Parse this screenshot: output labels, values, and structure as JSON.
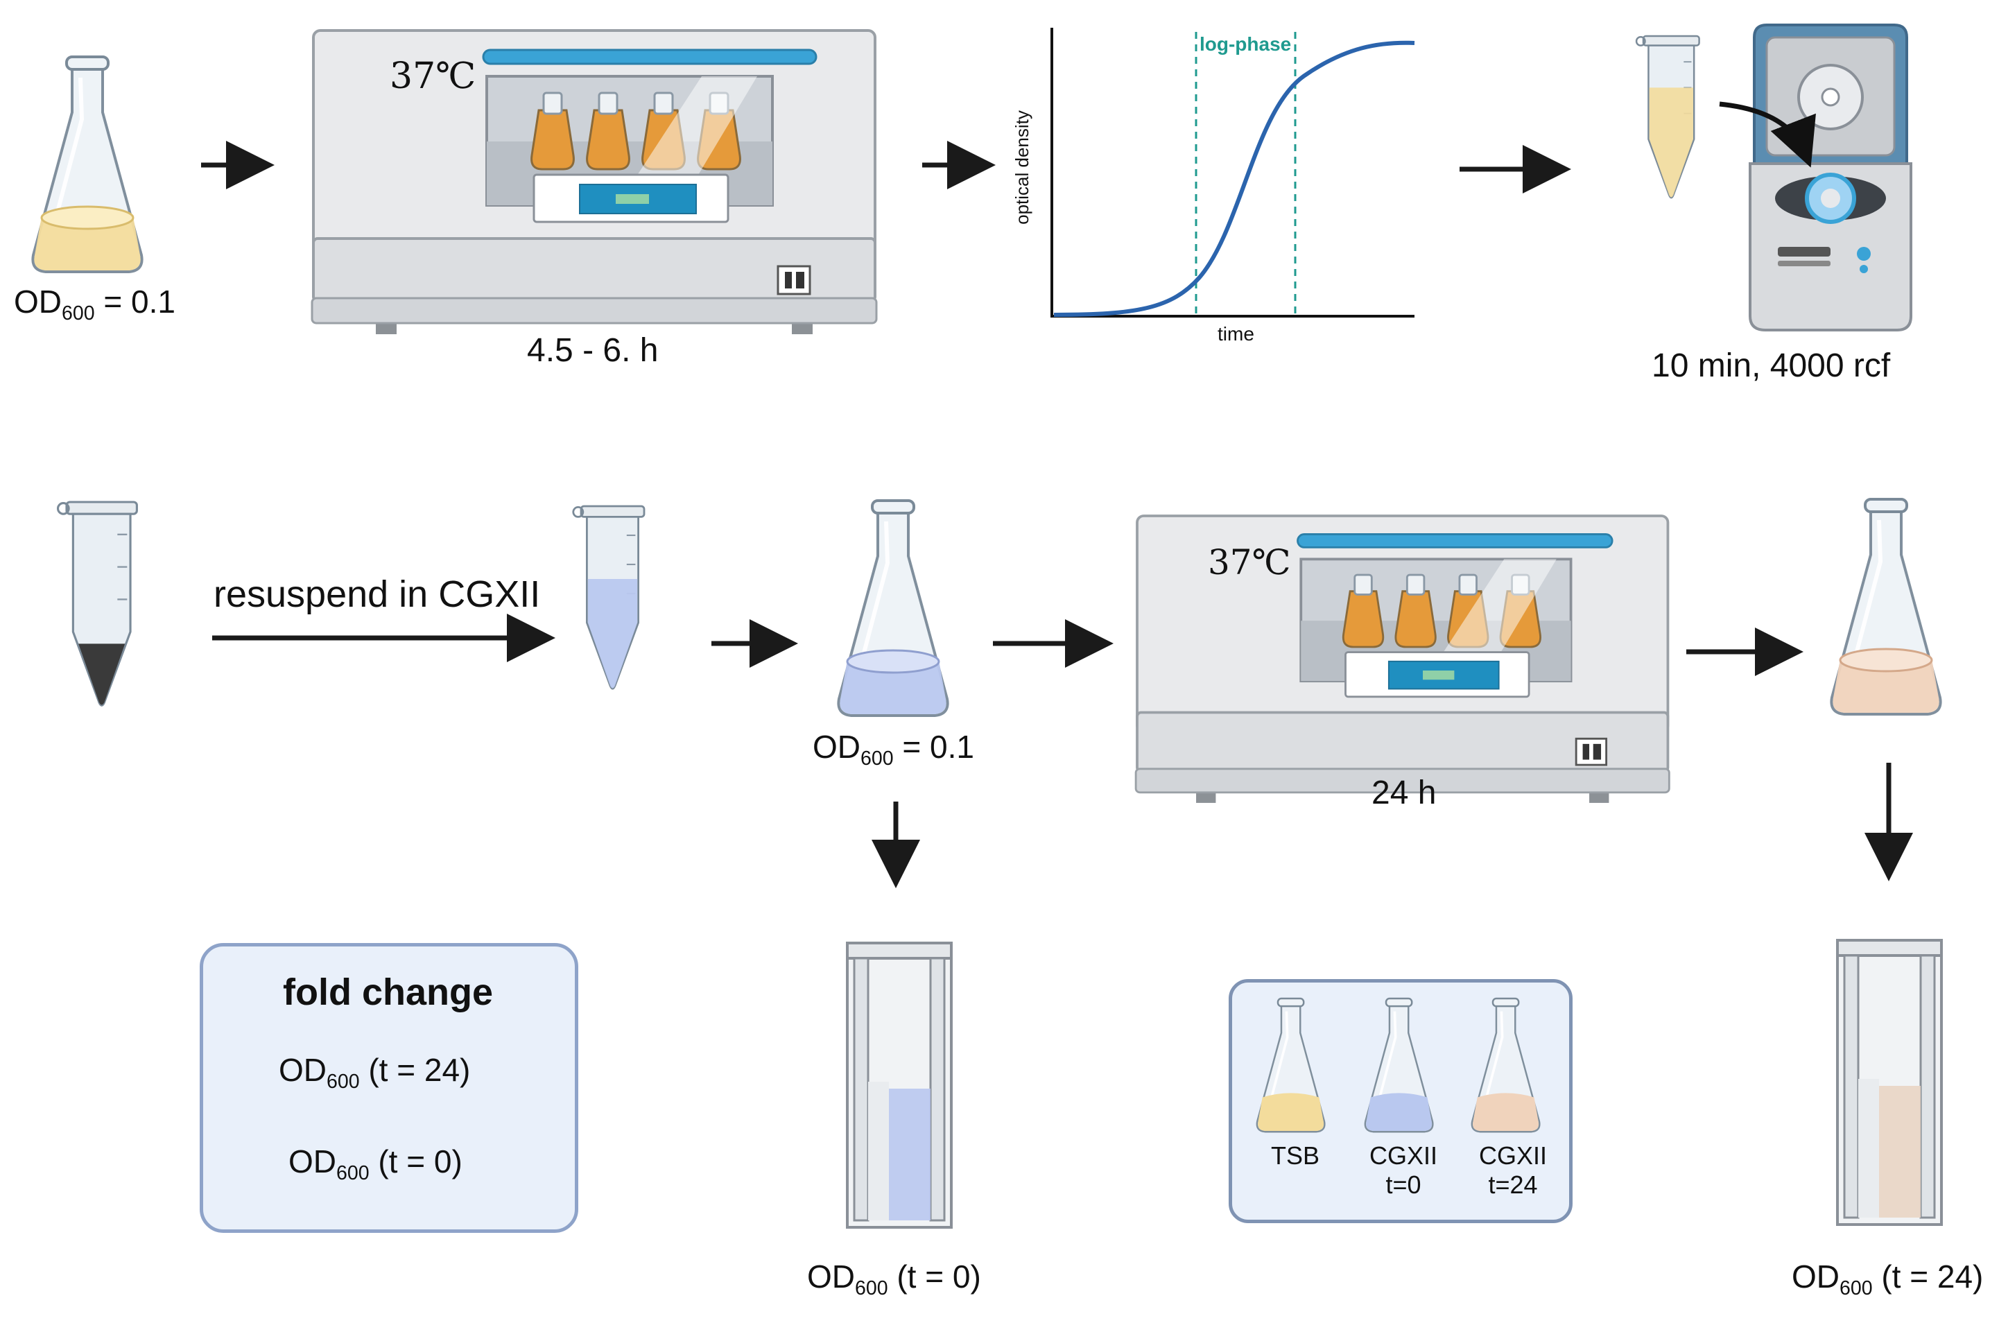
{
  "row1": {
    "flask_label_main": "OD",
    "flask_label_sub": "600",
    "flask_label_value": " = 0.1",
    "incubator1_temp": "37℃",
    "incubator1_time": "4.5 - 6. h",
    "curve_phase_label": "log-phase",
    "curve_ylabel": "optical density",
    "curve_xlabel": "time",
    "centrifuge_label": "10 min, 4000 rcf"
  },
  "row2": {
    "resuspend_label": "resuspend in CGXII",
    "flask2_label_main": "OD",
    "flask2_label_sub": "600",
    "flask2_label_value": " = 0.1",
    "incubator2_temp": "37℃",
    "incubator2_time": "24 h"
  },
  "row3": {
    "fold_change_title": "fold change",
    "numerator_main": "OD",
    "numerator_sub": "600",
    "numerator_rest": " (t = 24)",
    "denominator_main": "OD",
    "denominator_sub": "600",
    "denominator_rest": " (t = 0)",
    "cuvette1_main": "OD",
    "cuvette1_sub": "600",
    "cuvette1_rest": " (t = 0)",
    "cuvette2_main": "OD",
    "cuvette2_sub": "600",
    "cuvette2_rest": " (t = 24)",
    "legend": [
      {
        "line1": "TSB",
        "line2": "",
        "color": "#f3dc9c"
      },
      {
        "line1": "CGXII",
        "line2": "t=0",
        "color": "#b9c8ef"
      },
      {
        "line1": "CGXII",
        "line2": "t=24",
        "color": "#f0d3bc"
      }
    ]
  },
  "colors": {
    "accent_teal": "#1f9a8f",
    "curve_blue": "#2b64ad",
    "incubator_bar": "#3aa3d6",
    "culture_tsb": "#f3dc9c",
    "culture_cgxii_t0": "#b9c8ef",
    "culture_cgxii_t24": "#f0d3bc"
  }
}
